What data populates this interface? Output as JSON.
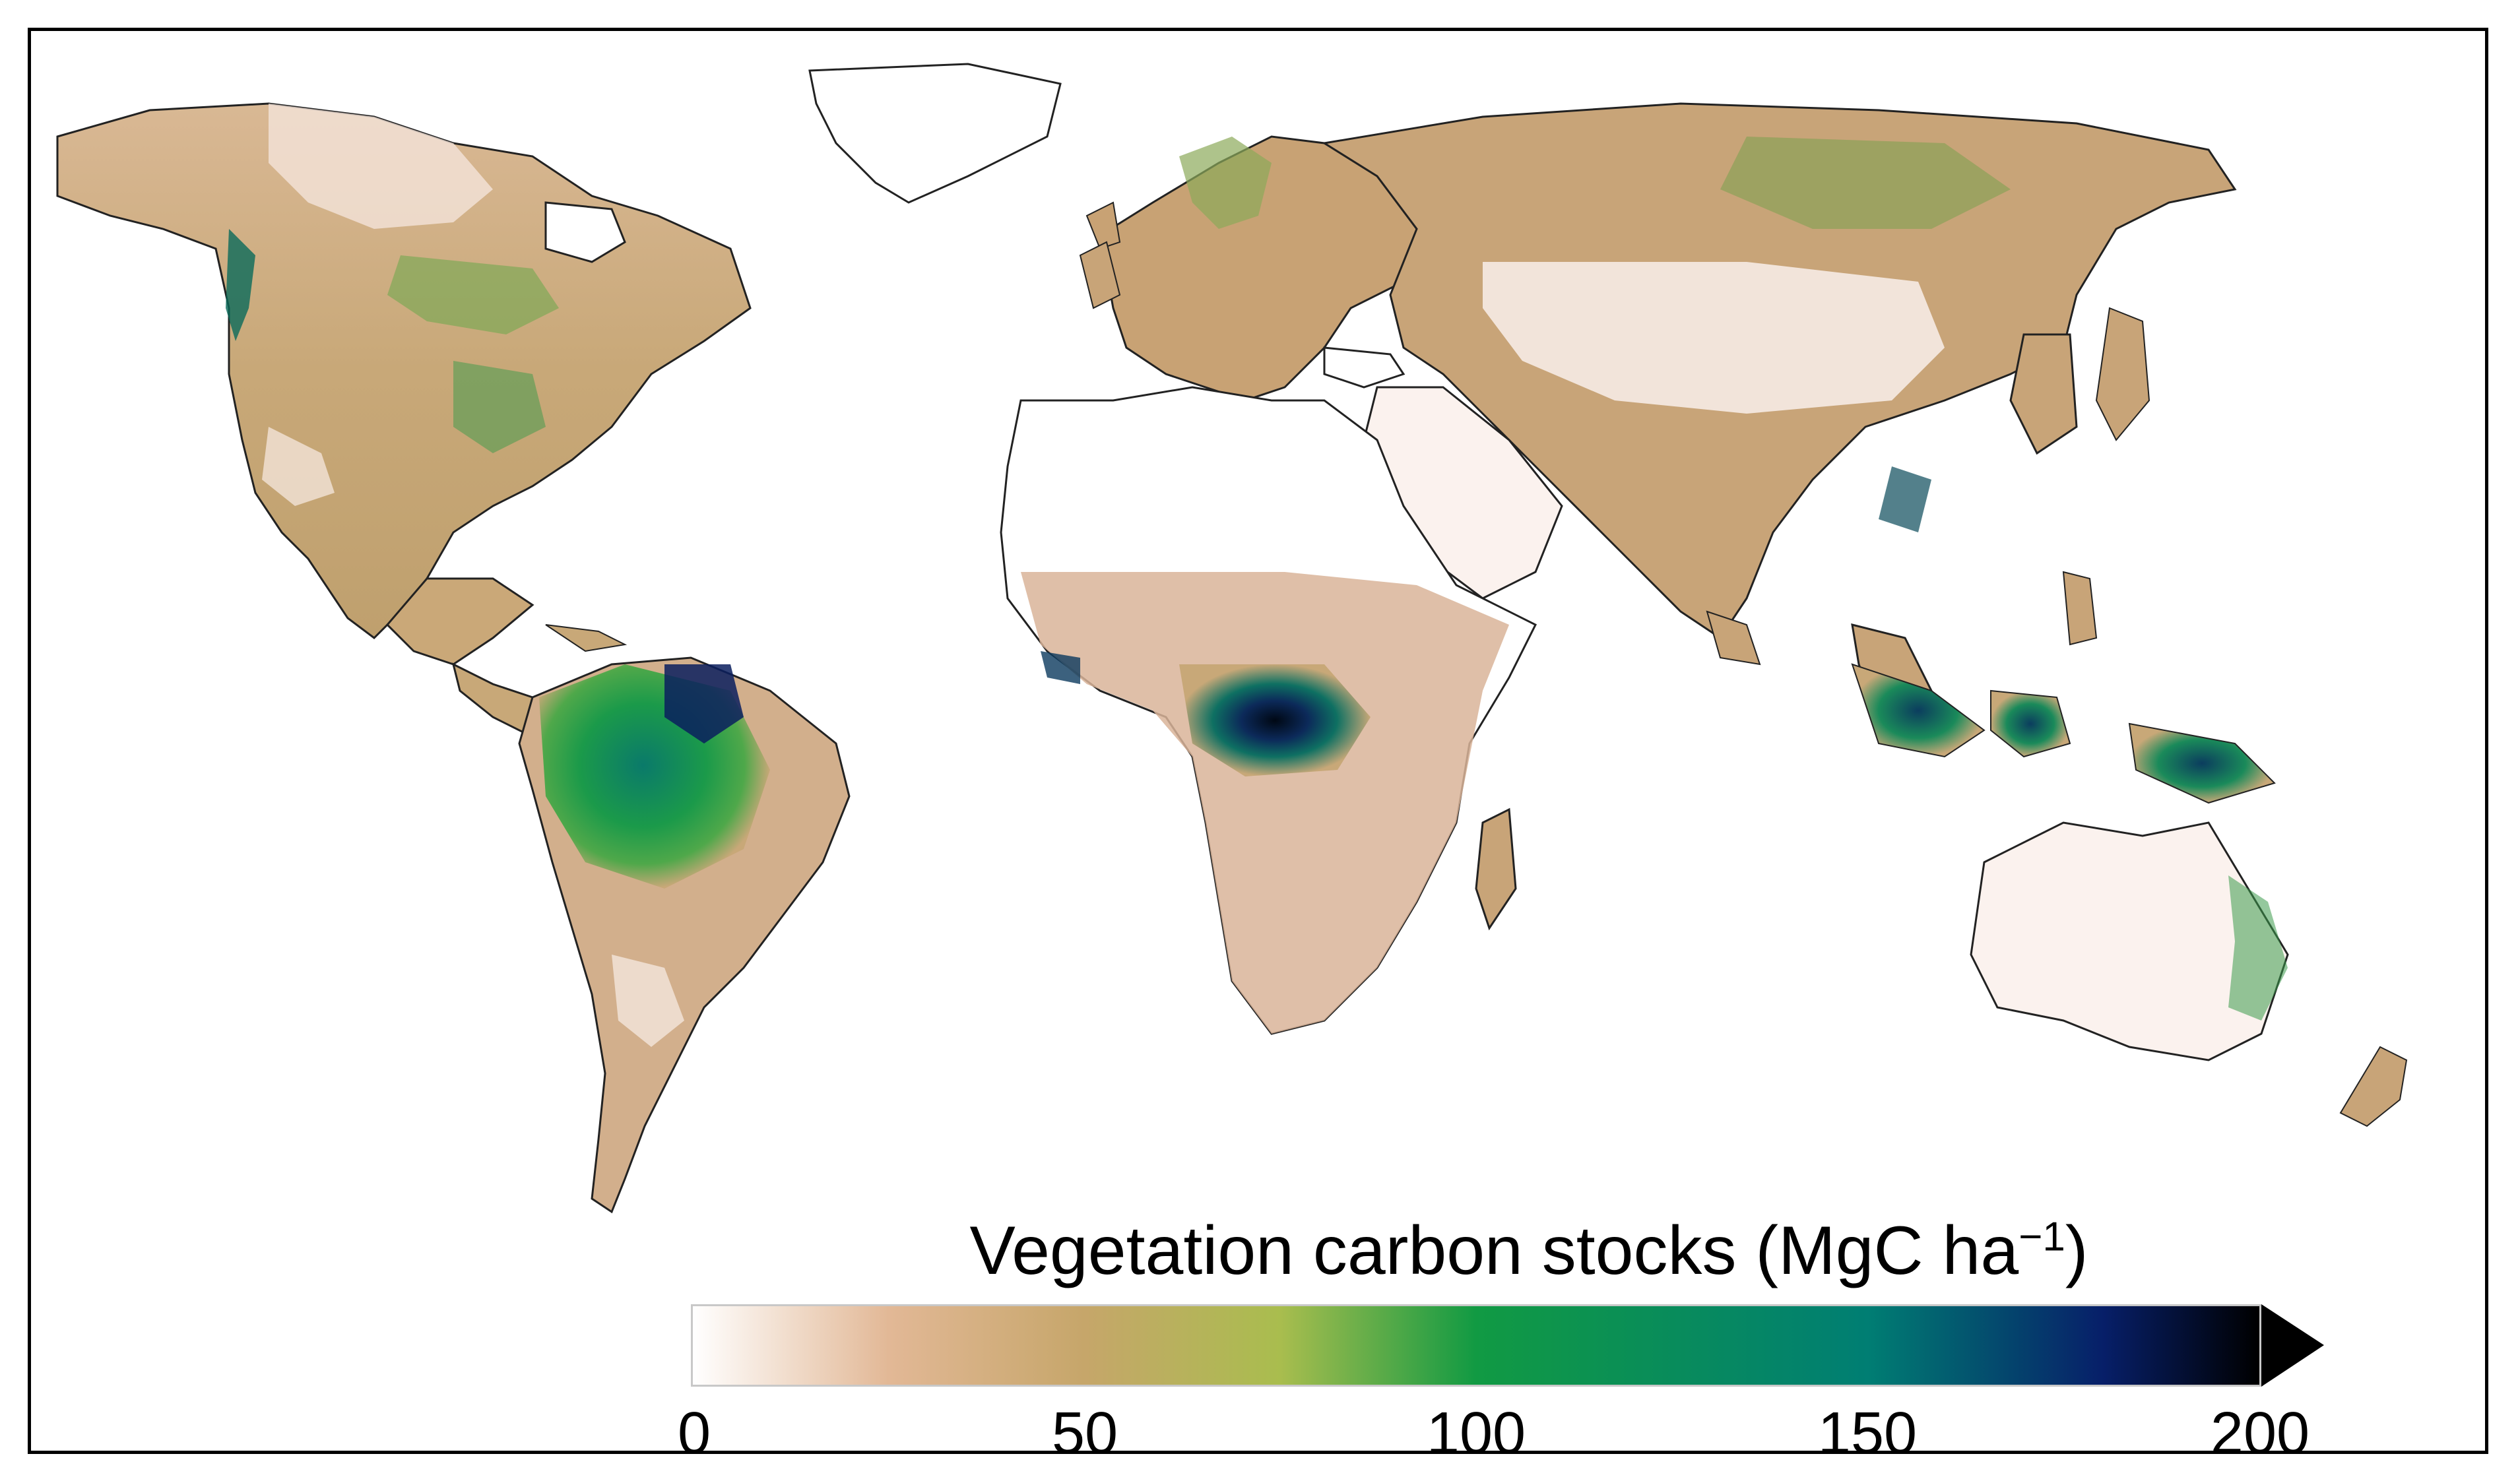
{
  "legend": {
    "title": "Vegetation carbon stocks (MgC ha",
    "title_superscript": "−1",
    "title_close": ")",
    "min": 0,
    "max": 200,
    "extend": "max",
    "ticks": [
      "0",
      "50",
      "100",
      "150",
      "200"
    ],
    "colorscale": [
      {
        "value": 0,
        "color": "#ffffff"
      },
      {
        "value": 25,
        "color": "#e2b896"
      },
      {
        "value": 50,
        "color": "#c6a66a"
      },
      {
        "value": 75,
        "color": "#a9bd4e"
      },
      {
        "value": 100,
        "color": "#119a43"
      },
      {
        "value": 150,
        "color": "#007e73"
      },
      {
        "value": 180,
        "color": "#071f69"
      },
      {
        "value": 200,
        "color": "#000000"
      }
    ],
    "extend_color": "#000000"
  },
  "colors": {
    "land_outline": "#222222",
    "border": "#9a9a9a",
    "background": "#ffffff"
  }
}
